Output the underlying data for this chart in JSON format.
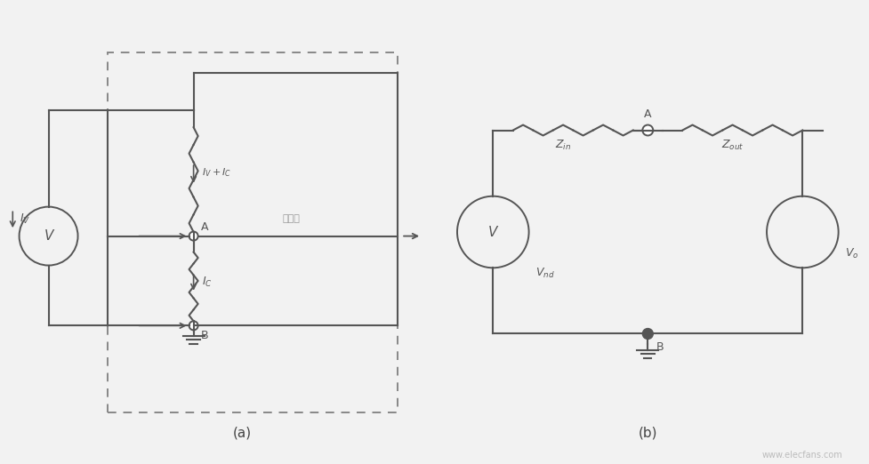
{
  "bg_color": "#f2f2f2",
  "line_color": "#555555",
  "label_color": "#666666",
  "fig_label_a": "(a)",
  "fig_label_b": "(b)",
  "watermark": "www.elecfans.com"
}
